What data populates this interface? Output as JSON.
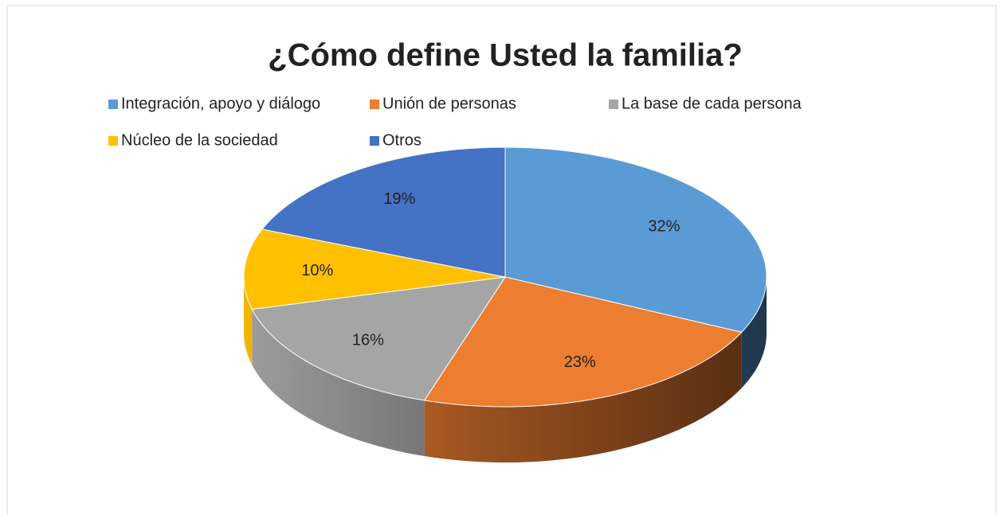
{
  "chart_data": {
    "type": "pie3d",
    "title": "¿Cómo define Usted la familia?",
    "categories": [
      "Integración, apoyo y diálogo",
      "Unión de personas",
      "La base de cada persona",
      "Núcleo de la sociedad",
      "Otros"
    ],
    "values": [
      32,
      23,
      16,
      10,
      19
    ],
    "value_labels": [
      "32%",
      "23%",
      "16%",
      "10%",
      "19%"
    ],
    "colors": [
      "#5b9bd5",
      "#ed7d31",
      "#a5a5a5",
      "#ffc000",
      "#4472c4"
    ],
    "legend": "top"
  }
}
